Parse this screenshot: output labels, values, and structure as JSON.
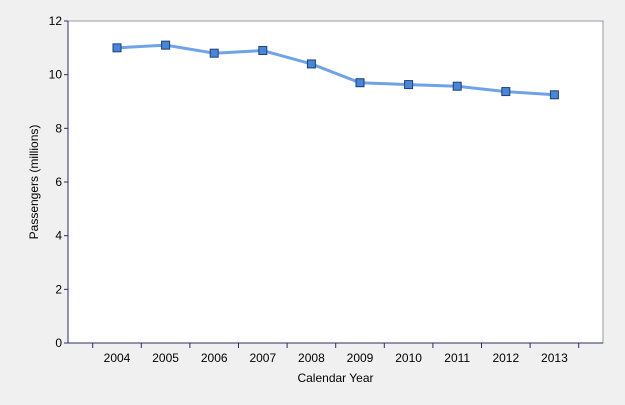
{
  "chart_data": {
    "type": "line",
    "title": "",
    "xlabel": "Calendar Year",
    "ylabel": "Passengers (millions)",
    "ylim": [
      0,
      12
    ],
    "yticks": [
      0,
      2,
      4,
      6,
      8,
      10,
      12
    ],
    "categories": [
      "2004",
      "2005",
      "2006",
      "2007",
      "2008",
      "2009",
      "2010",
      "2011",
      "2012",
      "2013"
    ],
    "series": [
      {
        "values": [
          11.0,
          11.1,
          10.8,
          10.9,
          10.4,
          9.7,
          9.63,
          9.57,
          9.37,
          9.25
        ]
      }
    ],
    "grid": false,
    "legend": "none",
    "colors": {
      "line": "#6fa3e8",
      "marker_fill": "#4a86d8",
      "marker_stroke": "#1f3f74",
      "plot_background": "#ffffff",
      "page_background": "#f0f0f0",
      "axis": "#2b2b6b"
    }
  }
}
